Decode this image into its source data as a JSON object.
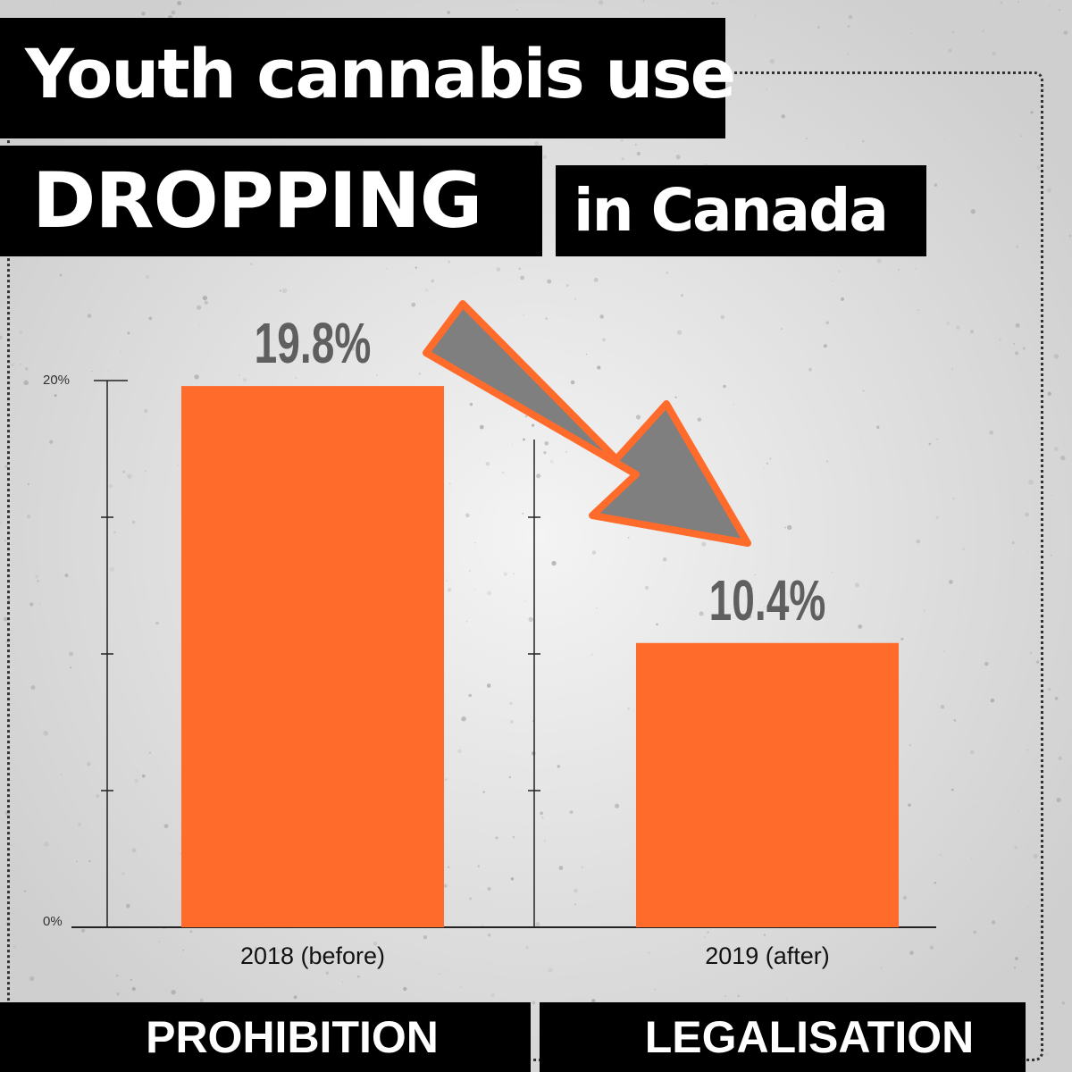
{
  "header": {
    "line1": "Youth cannabis use",
    "line2": "DROPPING",
    "line3": "in Canada"
  },
  "footer": {
    "left_label": "PROHIBITION",
    "right_label": "LEGALISATION"
  },
  "colors": {
    "bar": "#ff6b2b",
    "arrow_fill": "#7f7f7f",
    "arrow_stroke": "#ff6b2b",
    "banner": "#000000"
  },
  "chart_data": {
    "type": "bar",
    "categories": [
      "2018 (before)",
      "2019 (after)"
    ],
    "values": [
      19.8,
      10.4
    ],
    "value_labels": [
      "19.8%",
      "10.4%"
    ],
    "y_ticks": [
      "0%",
      "20%"
    ],
    "ylim": [
      0,
      20
    ],
    "title": "",
    "xlabel": "",
    "ylabel": "",
    "grid": false,
    "annotation": "downward arrow from 2018 bar to 2019 bar"
  }
}
